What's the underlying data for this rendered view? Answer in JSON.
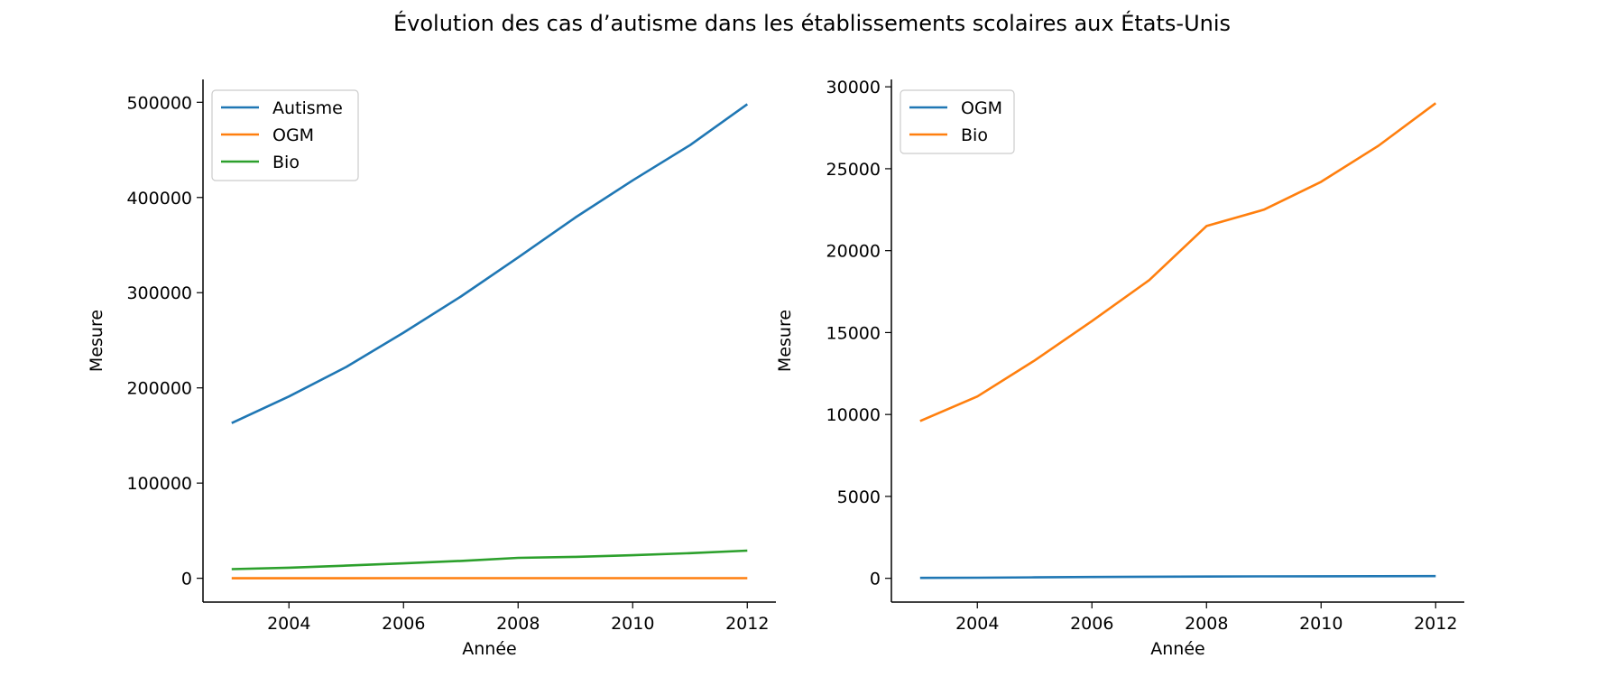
{
  "figure": {
    "title": "Évolution des cas d’autisme dans les établissements scolaires aux États-Unis"
  },
  "chart_data": [
    {
      "type": "line",
      "xlabel": "Année",
      "ylabel": "Mesure",
      "x": [
        2003,
        2004,
        2005,
        2006,
        2007,
        2008,
        2009,
        2010,
        2011,
        2012
      ],
      "xlim": [
        2002.5,
        2012.5
      ],
      "ylim": [
        -25000,
        524000
      ],
      "xticks": [
        2004,
        2006,
        2008,
        2010,
        2012
      ],
      "yticks": [
        0,
        100000,
        200000,
        300000,
        400000,
        500000
      ],
      "legend": "top-left",
      "grid": false,
      "series": [
        {
          "name": "Autisme",
          "color": "#1f77b4",
          "values": [
            163000,
            191000,
            222000,
            258000,
            296000,
            337000,
            379000,
            418000,
            455000,
            498000
          ]
        },
        {
          "name": "OGM",
          "color": "#ff7f0e",
          "values": [
            25,
            40,
            60,
            80,
            100,
            110,
            120,
            125,
            130,
            135
          ]
        },
        {
          "name": "Bio",
          "color": "#2ca02c",
          "values": [
            9600,
            11100,
            13300,
            15700,
            18200,
            21500,
            22500,
            24200,
            26400,
            29000
          ]
        }
      ]
    },
    {
      "type": "line",
      "xlabel": "Année",
      "ylabel": "Mesure",
      "x": [
        2003,
        2004,
        2005,
        2006,
        2007,
        2008,
        2009,
        2010,
        2011,
        2012
      ],
      "xlim": [
        2002.5,
        2012.5
      ],
      "ylim": [
        -1450,
        30450
      ],
      "xticks": [
        2004,
        2006,
        2008,
        2010,
        2012
      ],
      "yticks": [
        0,
        5000,
        10000,
        15000,
        20000,
        25000,
        30000
      ],
      "legend": "top-left",
      "grid": false,
      "series": [
        {
          "name": "OGM",
          "color": "#1f77b4",
          "values": [
            25,
            40,
            60,
            80,
            100,
            110,
            120,
            125,
            130,
            135
          ]
        },
        {
          "name": "Bio",
          "color": "#ff7f0e",
          "values": [
            9600,
            11100,
            13300,
            15700,
            18200,
            21500,
            22500,
            24200,
            26400,
            29000
          ]
        }
      ]
    }
  ]
}
